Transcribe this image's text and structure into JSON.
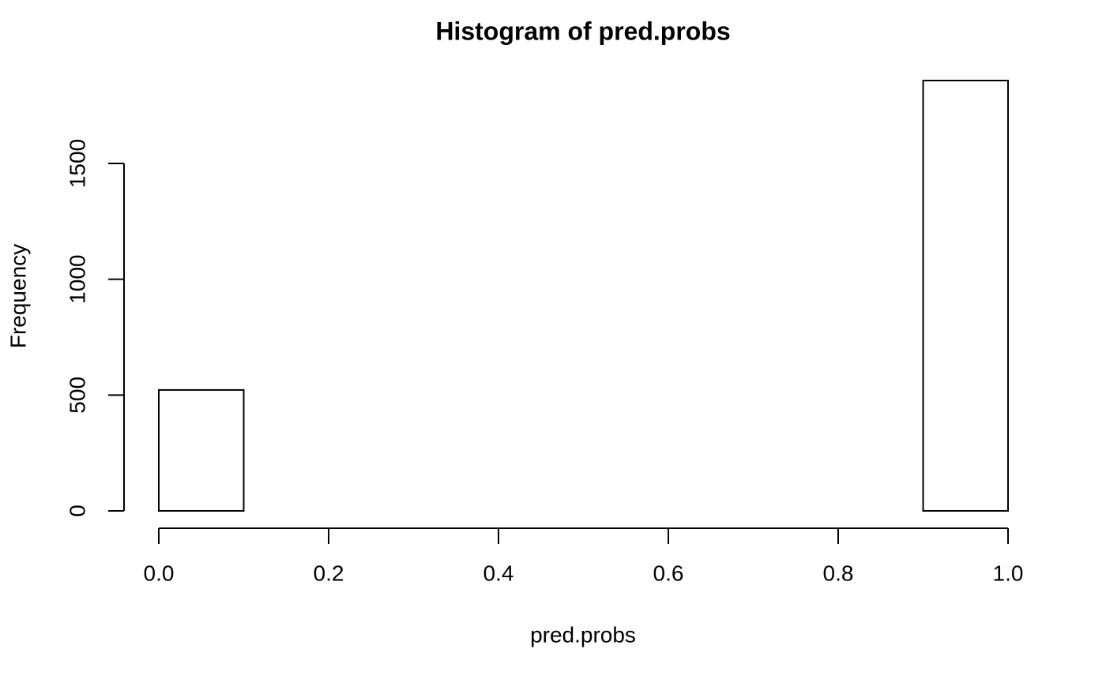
{
  "chart_data": {
    "type": "histogram",
    "title": "Histogram of pred.probs",
    "x_label": "pred.probs",
    "y_label": "Frequency",
    "bins": [
      0,
      0.1,
      0.2,
      0.3,
      0.4,
      0.5,
      0.6,
      0.7,
      0.8,
      0.9,
      1
    ],
    "values": [
      522,
      0,
      0,
      0,
      0,
      0,
      0,
      0,
      0,
      1858
    ],
    "color": "#ffffff",
    "edge_color": "#000000",
    "xlim": [
      0,
      1
    ],
    "ylim": [
      0,
      1858
    ],
    "xticks": [
      {
        "value": 0,
        "label": "0.0"
      },
      0.2,
      0.4,
      0.6,
      0.8,
      {
        "value": 1,
        "label": "1.0"
      }
    ],
    "yticks": [
      0,
      500,
      1000,
      1500
    ],
    "grid": false
  }
}
